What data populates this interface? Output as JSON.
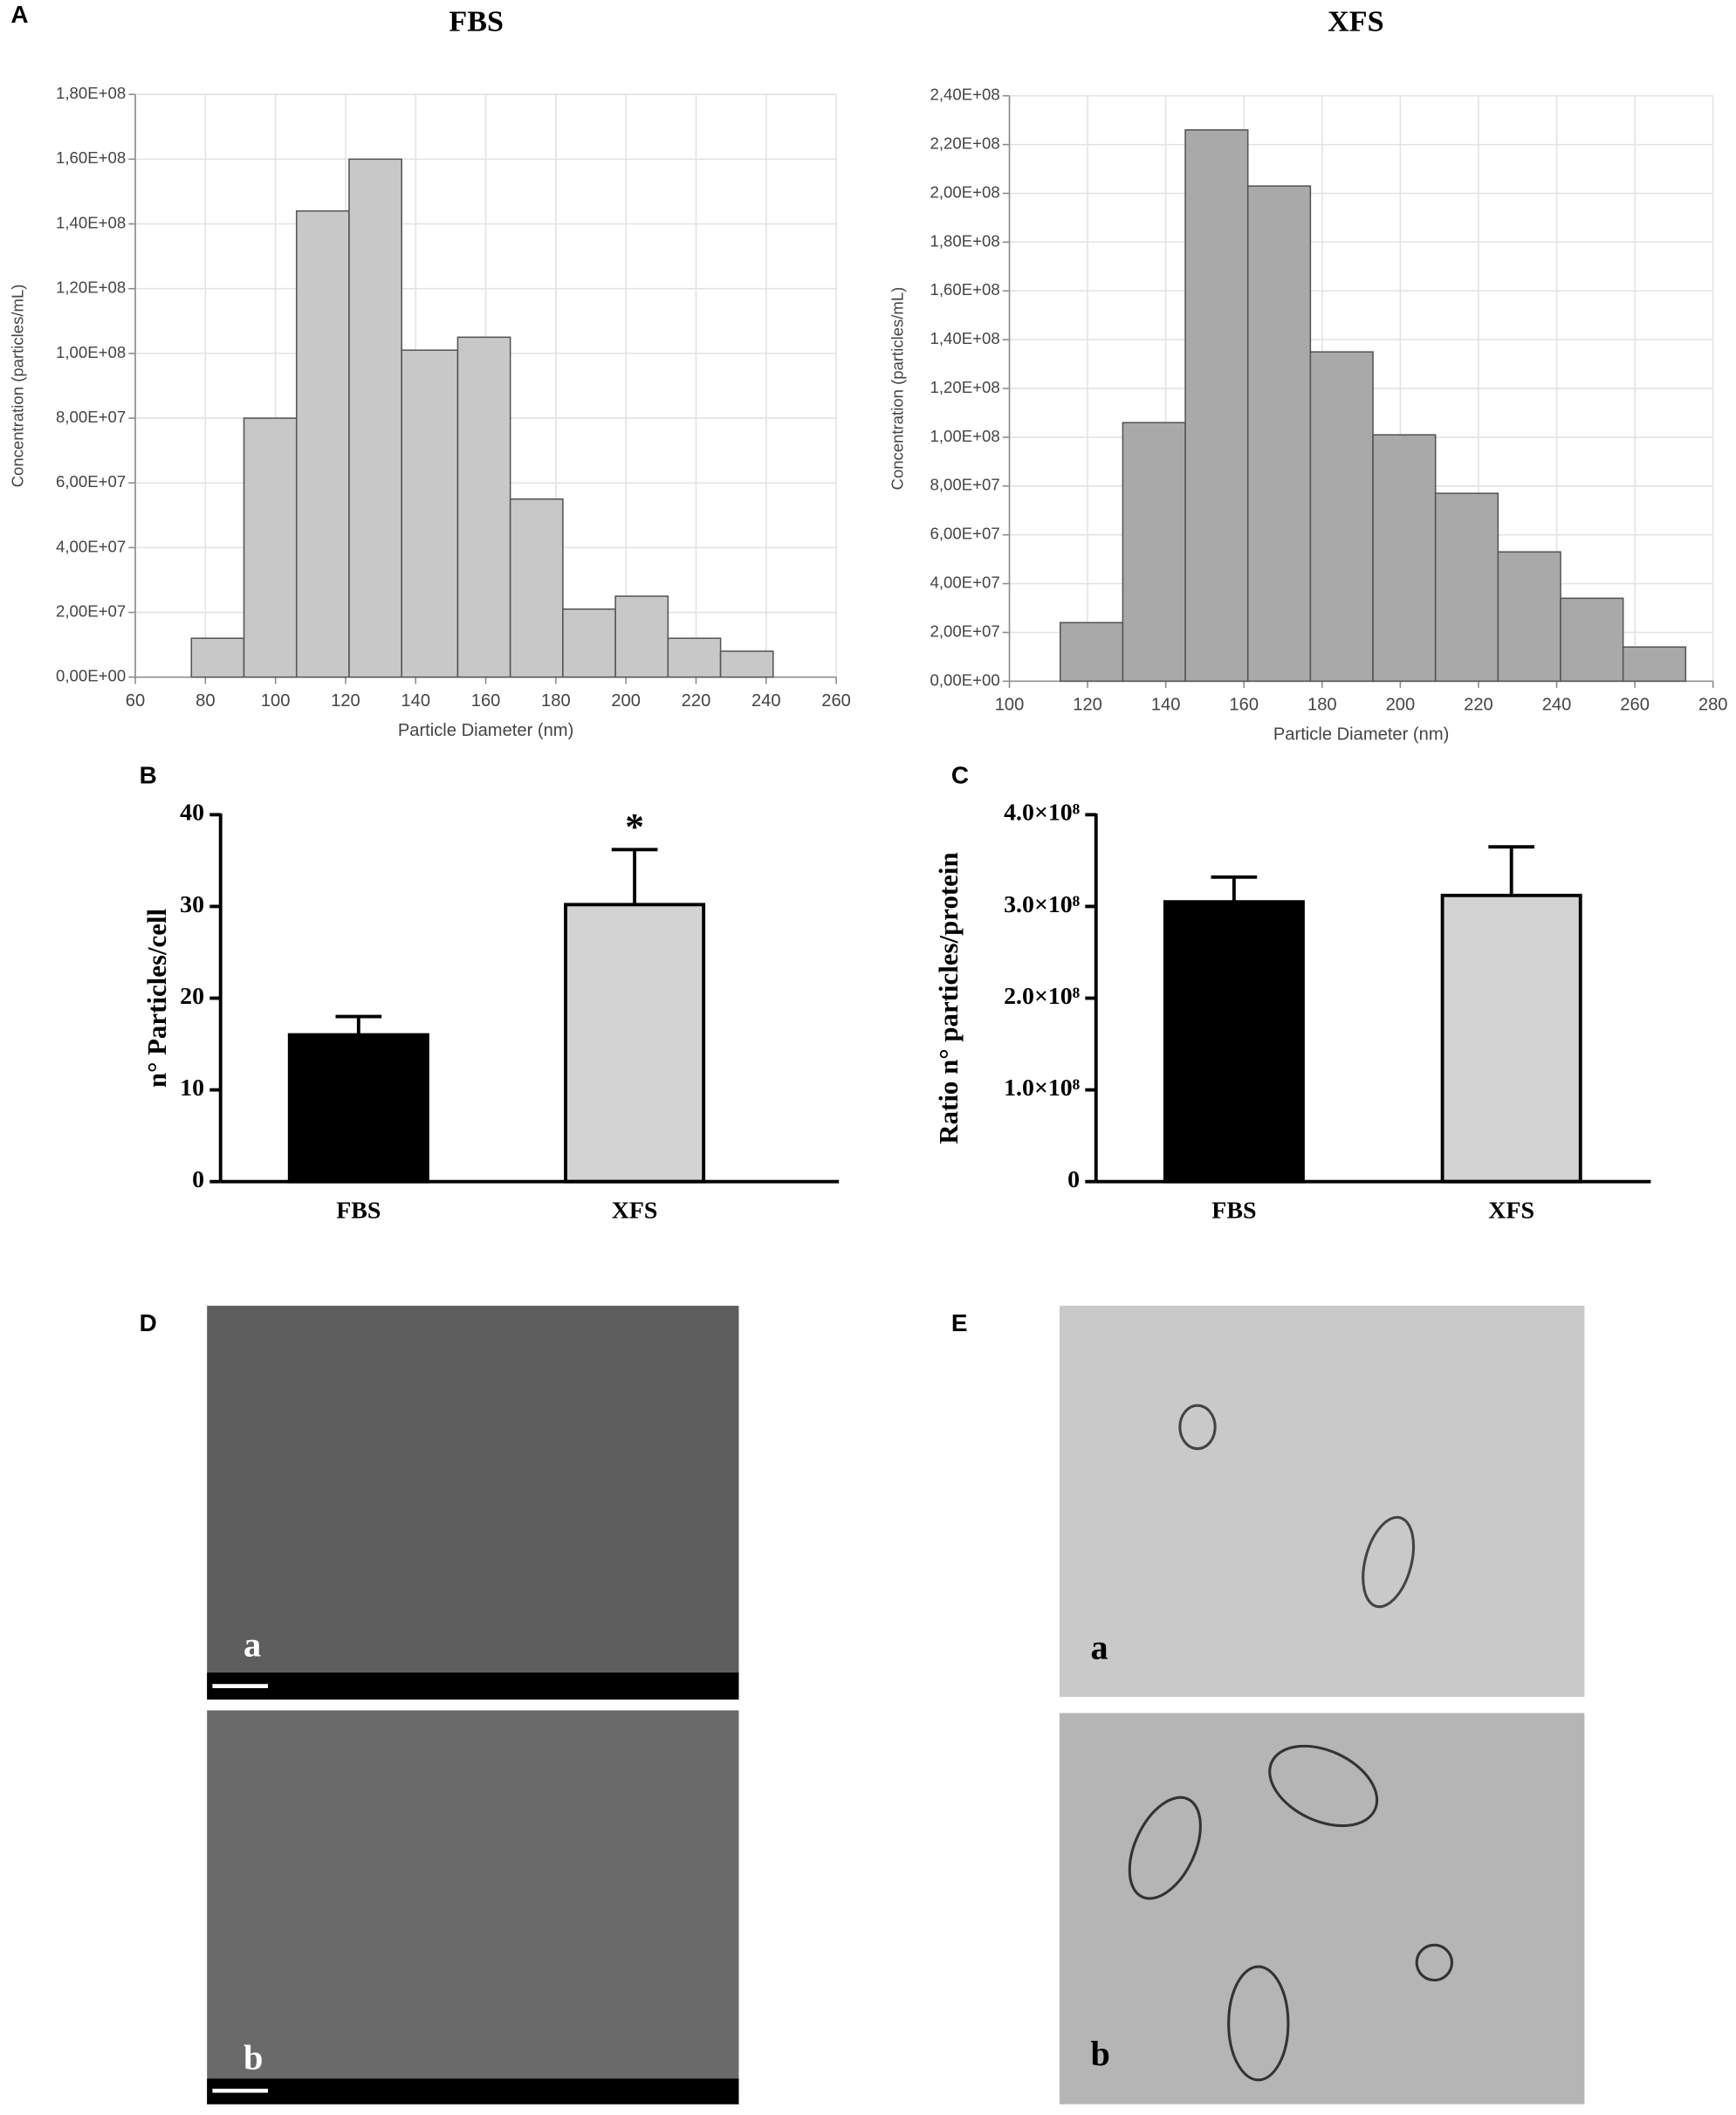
{
  "chart_data": [
    {
      "type": "histogram",
      "panel": "A",
      "title": "FBS",
      "xlabel": "Particle Diameter (nm)",
      "ylabel": "Concentration (particles/mL)",
      "bins": [
        76,
        91,
        106,
        121,
        136,
        152,
        167,
        182,
        197,
        212,
        227,
        242
      ],
      "values": [
        12000000,
        80000000,
        144000000,
        160000000,
        101000000,
        105000000,
        55000000,
        21000000,
        25000000,
        12000000,
        8000000
      ],
      "color": "#c8c8c8",
      "xlim": [
        60,
        260
      ],
      "xticks": [
        60,
        80,
        100,
        120,
        140,
        160,
        180,
        200,
        220,
        240,
        260
      ],
      "ylim": [
        0,
        180000000
      ],
      "yticks": [
        {
          "value": 0,
          "label": "0,00E+00"
        },
        {
          "value": 20000000,
          "label": "2,00E+07"
        },
        {
          "value": 40000000,
          "label": "4,00E+07"
        },
        {
          "value": 60000000,
          "label": "6,00E+07"
        },
        {
          "value": 80000000,
          "label": "8,00E+07"
        },
        {
          "value": 100000000,
          "label": "1,00E+08"
        },
        {
          "value": 120000000,
          "label": "1,20E+08"
        },
        {
          "value": 140000000,
          "label": "1,40E+08"
        },
        {
          "value": 160000000,
          "label": "1,60E+08"
        },
        {
          "value": 180000000,
          "label": "1,80E+08"
        }
      ],
      "grid": true
    },
    {
      "type": "histogram",
      "title": "XFS",
      "xlabel": "Particle Diameter (nm)",
      "ylabel": "Concentration (particles/mL)",
      "bins": [
        113,
        129,
        145,
        161,
        177,
        193,
        209,
        225,
        241,
        257,
        273
      ],
      "values": [
        24000000,
        106000000,
        226000000,
        203000000,
        135000000,
        101000000,
        77000000,
        53000000,
        34000000,
        14000000
      ],
      "color": "#a9a9a9",
      "xlim": [
        100,
        280
      ],
      "xticks": [
        100,
        120,
        140,
        160,
        180,
        200,
        220,
        240,
        260,
        280
      ],
      "ylim": [
        0,
        240000000
      ],
      "yticks": [
        {
          "value": 0,
          "label": "0,00E+00"
        },
        {
          "value": 20000000,
          "label": "2,00E+07"
        },
        {
          "value": 40000000,
          "label": "4,00E+07"
        },
        {
          "value": 60000000,
          "label": "6,00E+07"
        },
        {
          "value": 80000000,
          "label": "8,00E+07"
        },
        {
          "value": 100000000,
          "label": "1,00E+08"
        },
        {
          "value": 120000000,
          "label": "1,20E+08"
        },
        {
          "value": 140000000,
          "label": "1,40E+08"
        },
        {
          "value": 160000000,
          "label": "1,60E+08"
        },
        {
          "value": 180000000,
          "label": "1,80E+08"
        },
        {
          "value": 200000000,
          "label": "2,00E+08"
        },
        {
          "value": 220000000,
          "label": "2,20E+08"
        },
        {
          "value": 240000000,
          "label": "2,40E+08"
        }
      ],
      "grid": true
    },
    {
      "type": "bar",
      "panel": "B",
      "ylabel": "n° Particles/cell",
      "categories": [
        "FBS",
        "XFS"
      ],
      "values": [
        16,
        30.2
      ],
      "errors": [
        2,
        6
      ],
      "colors": [
        "#000000",
        "#d3d3d3"
      ],
      "annotation": "*",
      "ylim": [
        0,
        40
      ],
      "yticks": [
        0,
        10,
        20,
        30,
        40
      ],
      "grid": false
    },
    {
      "type": "bar",
      "panel": "C",
      "ylabel": "Ratio n° particles/protein",
      "categories": [
        "FBS",
        "XFS"
      ],
      "values": [
        305000000,
        312000000
      ],
      "errors": [
        27000000,
        53000000
      ],
      "colors": [
        "#000000",
        "#d3d3d3"
      ],
      "ylim": [
        0,
        400000000
      ],
      "yticks": [
        0,
        {
          "value": 100000000,
          "label": "1.0×10⁸"
        },
        {
          "value": 200000000,
          "label": "2.0×10⁸"
        },
        {
          "value": 300000000,
          "label": "3.0×10⁸"
        },
        {
          "value": 400000000,
          "label": "4.0×10⁸"
        }
      ],
      "grid": false
    }
  ],
  "images": [
    {
      "panel": "D",
      "sublabels": [
        "a",
        "b"
      ]
    },
    {
      "panel": "E",
      "sublabels": [
        "a",
        "b"
      ]
    }
  ]
}
